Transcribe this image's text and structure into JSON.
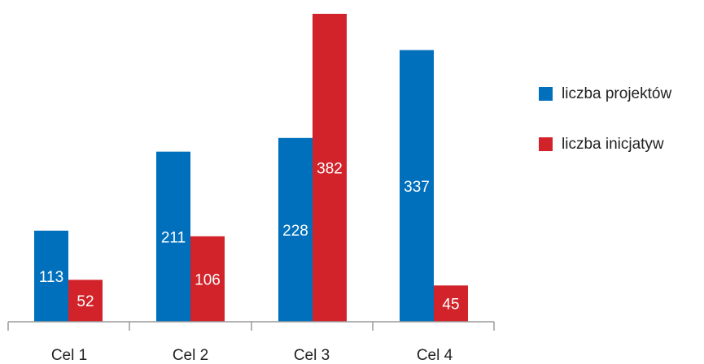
{
  "chart_data": {
    "type": "bar",
    "categories": [
      "Cel 1",
      "Cel 2",
      "Cel 3",
      "Cel 4"
    ],
    "series": [
      {
        "name": "liczba projektów",
        "values": [
          113,
          211,
          228,
          337
        ],
        "color": "#0070bc"
      },
      {
        "name": "liczba inicjatyw",
        "values": [
          52,
          106,
          382,
          45
        ],
        "color": "#d2232a"
      }
    ],
    "title": "",
    "xlabel": "",
    "ylabel": "",
    "ylim": [
      0,
      382
    ],
    "grid": false,
    "legend_position": "right",
    "data_labels": true,
    "label_color": "#ffffff",
    "axis_color": "#9a9a9a"
  }
}
